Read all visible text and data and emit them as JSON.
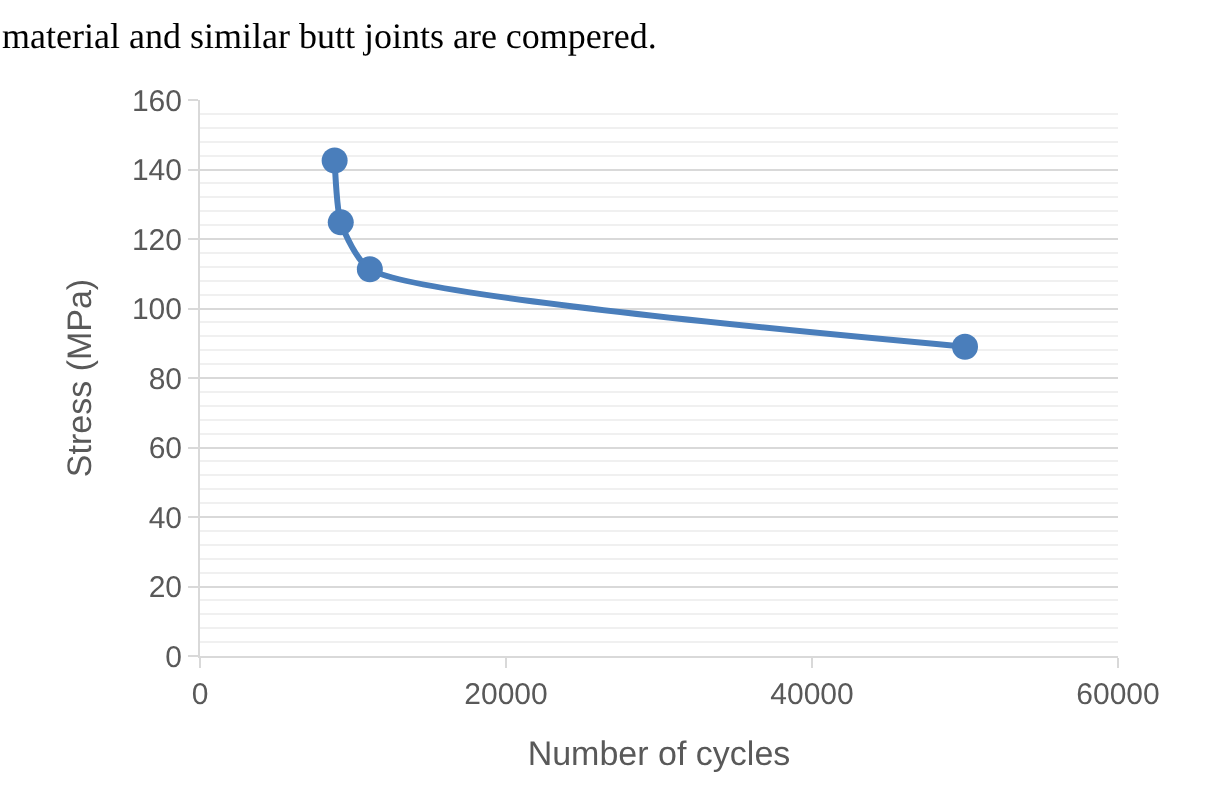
{
  "chart_data": {
    "type": "line",
    "xlabel": "Number of cycles",
    "ylabel": "Stress (MPa)",
    "annotations": [
      "material and similar butt joints are compered."
    ],
    "x": [
      8800,
      9200,
      11100,
      50000
    ],
    "series": [
      {
        "color": "#4a7ebb",
        "values": [
          142.6,
          124.8,
          111.3,
          89
        ]
      }
    ],
    "xlim": [
      0,
      60000
    ],
    "xticks": [
      0,
      20000,
      40000,
      60000
    ],
    "ylim": [
      0,
      160
    ],
    "yticks": [
      0,
      20,
      40,
      60,
      80,
      100,
      120,
      140,
      160
    ],
    "grid": "y",
    "marker": "circle",
    "line_style": "solid"
  }
}
